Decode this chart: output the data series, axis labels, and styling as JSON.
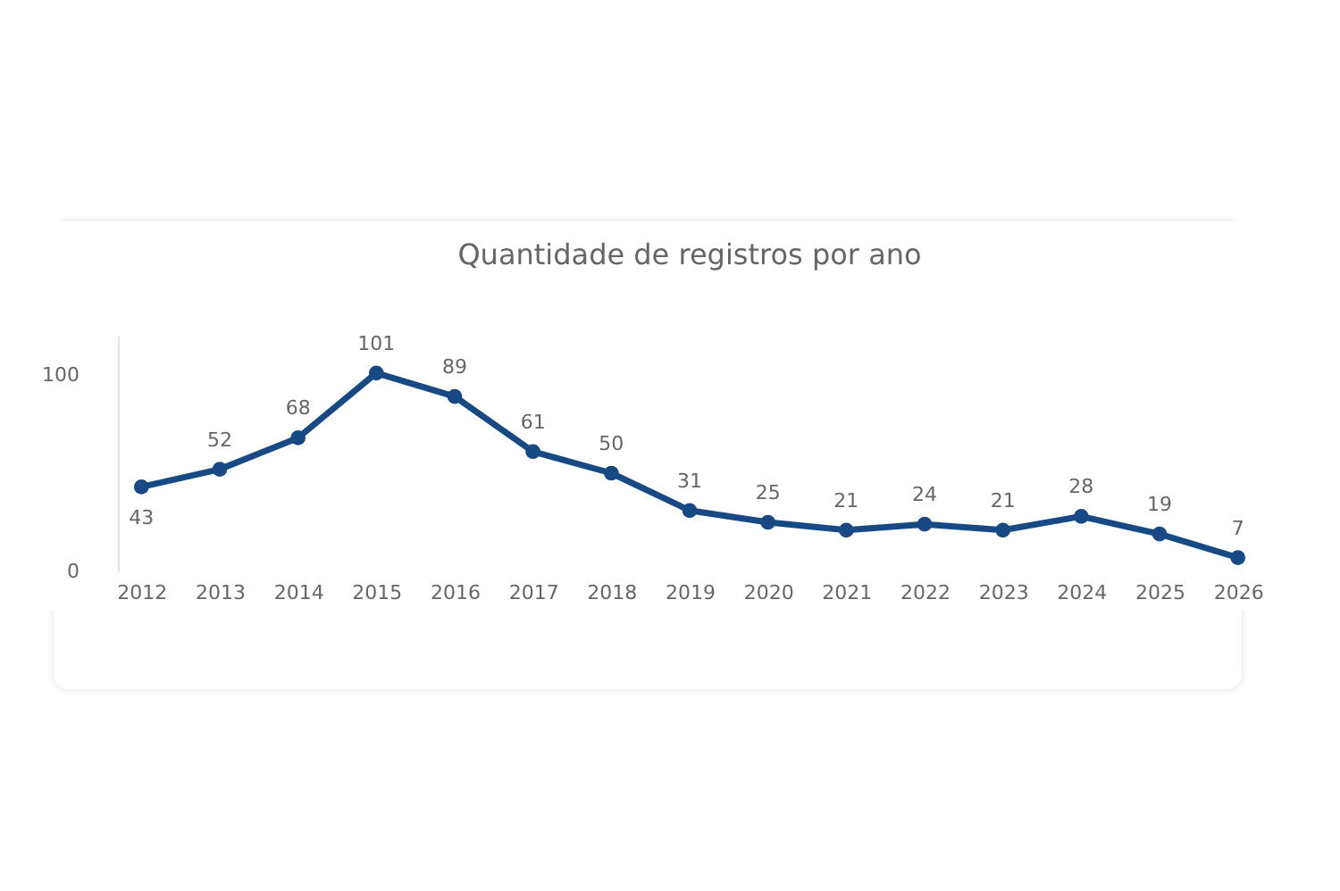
{
  "chart_data": {
    "type": "line",
    "title": "Quantidade de registros por ano",
    "categories": [
      "2012",
      "2013",
      "2014",
      "2015",
      "2016",
      "2017",
      "2018",
      "2019",
      "2020",
      "2021",
      "2022",
      "2023",
      "2024",
      "2025",
      "2026"
    ],
    "series": [
      {
        "color": "#174a85",
        "values": [
          43,
          52,
          68,
          101,
          89,
          61,
          50,
          31,
          25,
          21,
          24,
          21,
          28,
          19,
          7
        ]
      }
    ],
    "ylim": [
      0,
      120
    ],
    "yticks": [
      0,
      100
    ],
    "data_labels": true,
    "marker": "circle",
    "grid": false
  }
}
